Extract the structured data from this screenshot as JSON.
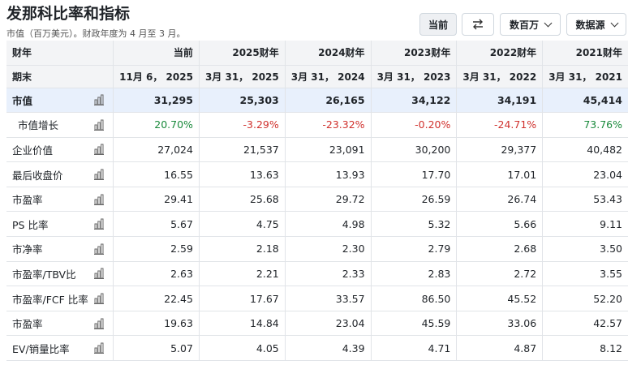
{
  "header": {
    "title": "发那科比率和指标",
    "subtitle": "市值（百万美元）。财政年度为 4 月至 3 月。"
  },
  "toolbar": {
    "current_label": "当前",
    "swap_icon": "swap-arrows-icon",
    "units_label": "数百万",
    "source_label": "数据源"
  },
  "table": {
    "header_row1_label": "财年",
    "header_row2_label": "期末",
    "columns": [
      {
        "fy": "当前",
        "end": "11月 6， 2025"
      },
      {
        "fy": "2025财年",
        "end": "3月 31， 2025"
      },
      {
        "fy": "2024财年",
        "end": "3月 31， 2024"
      },
      {
        "fy": "2023财年",
        "end": "3月 31， 2023"
      },
      {
        "fy": "2022财年",
        "end": "3月 31， 2022"
      },
      {
        "fy": "2021财年",
        "end": "3月 31， 2021"
      }
    ],
    "rows": [
      {
        "label": "市值",
        "values": [
          "31,295",
          "25,303",
          "26,165",
          "34,122",
          "34,191",
          "45,414"
        ],
        "kind": "mcap"
      },
      {
        "label": "市值增长",
        "values": [
          "20.70%",
          "-3.29%",
          "-23.32%",
          "-0.20%",
          "-24.71%",
          "73.76%"
        ],
        "kind": "growth"
      },
      {
        "label": "企业价值",
        "values": [
          "27,024",
          "21,537",
          "23,091",
          "30,200",
          "29,377",
          "40,482"
        ],
        "kind": "normal"
      },
      {
        "label": "最后收盘价",
        "values": [
          "16.55",
          "13.63",
          "13.93",
          "17.70",
          "17.01",
          "23.04"
        ],
        "kind": "normal"
      },
      {
        "label": "市盈率",
        "values": [
          "29.41",
          "25.68",
          "29.72",
          "26.59",
          "26.74",
          "53.43"
        ],
        "kind": "normal"
      },
      {
        "label": "PS 比率",
        "values": [
          "5.67",
          "4.75",
          "4.98",
          "5.32",
          "5.66",
          "9.11"
        ],
        "kind": "normal"
      },
      {
        "label": "市净率",
        "values": [
          "2.59",
          "2.18",
          "2.30",
          "2.79",
          "2.68",
          "3.50"
        ],
        "kind": "normal"
      },
      {
        "label": "市盈率/TBV比",
        "values": [
          "2.63",
          "2.21",
          "2.33",
          "2.83",
          "2.72",
          "3.55"
        ],
        "kind": "normal"
      },
      {
        "label": "市盈率/FCF 比率",
        "values": [
          "22.45",
          "17.67",
          "33.57",
          "86.50",
          "45.52",
          "52.20"
        ],
        "kind": "normal"
      },
      {
        "label": "市盈率",
        "values": [
          "19.63",
          "14.84",
          "23.04",
          "45.59",
          "33.06",
          "42.57"
        ],
        "kind": "normal"
      },
      {
        "label": "EV/销量比率",
        "values": [
          "5.07",
          "4.05",
          "4.39",
          "4.71",
          "4.87",
          "8.12"
        ],
        "kind": "normal"
      }
    ]
  },
  "colors": {
    "positive": "#1a8a3c",
    "negative": "#d0312d",
    "highlight_row": "#e8f0fc",
    "header_bg": "#f3f4f6"
  },
  "icons": {
    "row_chart_icon": "bar-chart-icon"
  }
}
